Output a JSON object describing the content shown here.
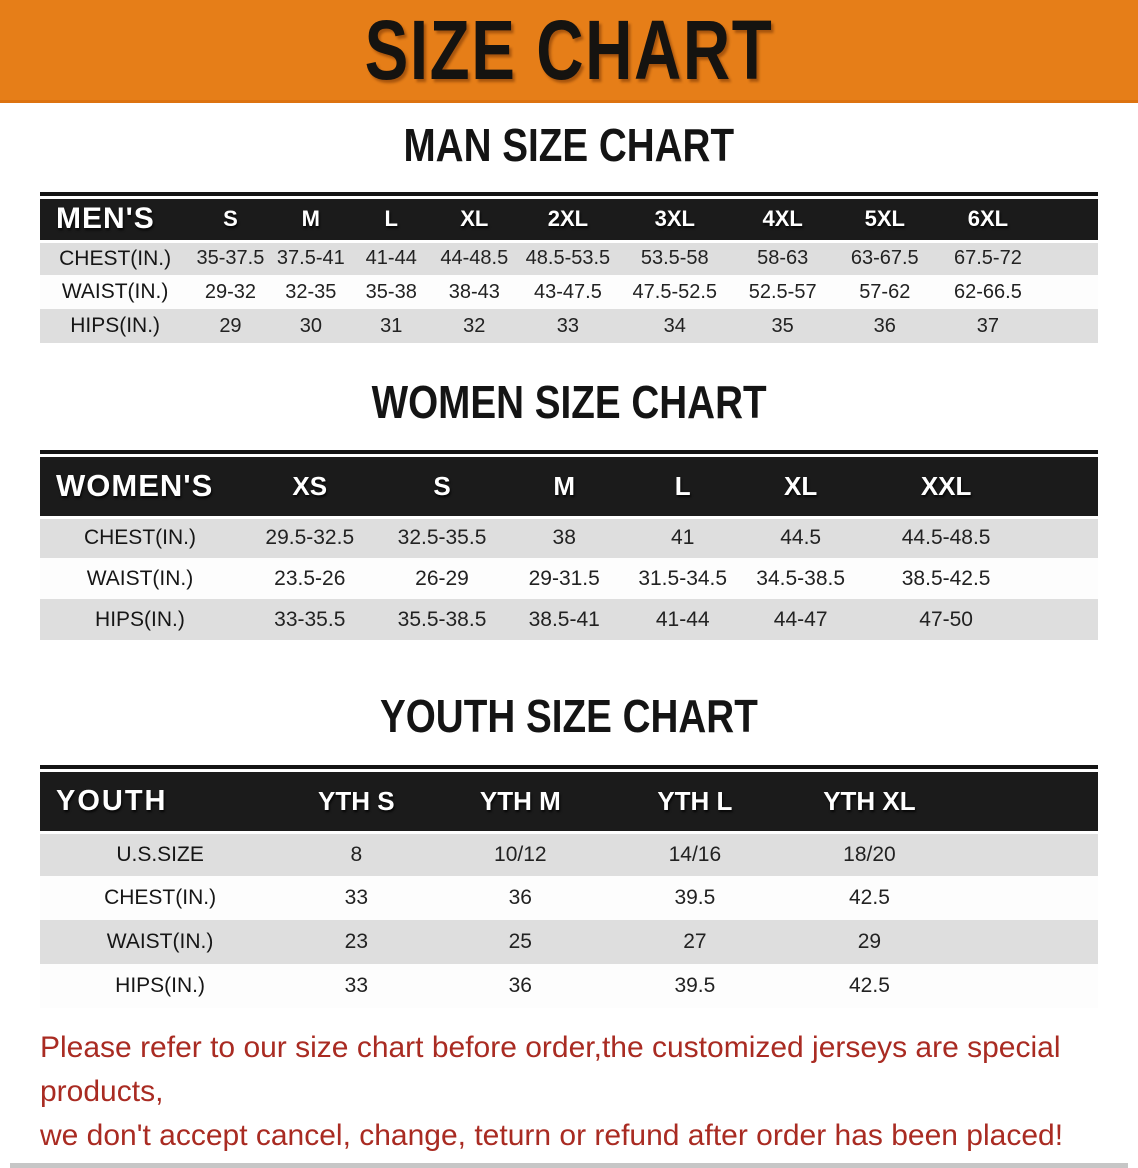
{
  "banner": {
    "title": "SIZE CHART",
    "bg_color": "#E67E18"
  },
  "colors": {
    "banner_orange": "#E67E18",
    "header_band_black": "#1B1B1B",
    "row_gray": "#DEDEDE",
    "footer_red": "#A92B22"
  },
  "sections": {
    "men": {
      "heading": "MAN SIZE CHART",
      "table": {
        "label": "MEN'S",
        "columns": [
          "S",
          "M",
          "L",
          "XL",
          "2XL",
          "3XL",
          "4XL",
          "5XL",
          "6XL"
        ],
        "rows": [
          {
            "label": "CHEST(IN.)",
            "values": [
              "35-37.5",
              "37.5-41",
              "41-44",
              "44-48.5",
              "48.5-53.5",
              "53.5-58",
              "58-63",
              "63-67.5",
              "67.5-72"
            ]
          },
          {
            "label": "WAIST(IN.)",
            "values": [
              "29-32",
              "32-35",
              "35-38",
              "38-43",
              "43-47.5",
              "47.5-52.5",
              "52.5-57",
              "57-62",
              "62-66.5"
            ]
          },
          {
            "label": "HIPS(IN.)",
            "values": [
              "29",
              "30",
              "31",
              "32",
              "33",
              "34",
              "35",
              "36",
              "37"
            ]
          }
        ]
      }
    },
    "women": {
      "heading": "WOMEN SIZE CHART",
      "table": {
        "label": "WOMEN'S",
        "columns": [
          "XS",
          "S",
          "M",
          "L",
          "XL",
          "XXL"
        ],
        "rows": [
          {
            "label": "CHEST(IN.)",
            "values": [
              "29.5-32.5",
              "32.5-35.5",
              "38",
              "41",
              "44.5",
              "44.5-48.5"
            ]
          },
          {
            "label": "WAIST(IN.)",
            "values": [
              "23.5-26",
              "26-29",
              "29-31.5",
              "31.5-34.5",
              "34.5-38.5",
              "38.5-42.5"
            ]
          },
          {
            "label": "HIPS(IN.)",
            "values": [
              "33-35.5",
              "35.5-38.5",
              "38.5-41",
              "41-44",
              "44-47",
              "47-50"
            ]
          }
        ]
      }
    },
    "youth": {
      "heading": "YOUTH SIZE CHART",
      "table": {
        "label": "YOUTH",
        "columns": [
          "YTH S",
          "YTH M",
          "YTH L",
          "YTH XL"
        ],
        "rows": [
          {
            "label": "U.S.SIZE",
            "values": [
              "8",
              "10/12",
              "14/16",
              "18/20"
            ]
          },
          {
            "label": "CHEST(IN.)",
            "values": [
              "33",
              "36",
              "39.5",
              "42.5"
            ]
          },
          {
            "label": "WAIST(IN.)",
            "values": [
              "23",
              "25",
              "27",
              "29"
            ]
          },
          {
            "label": "HIPS(IN.)",
            "values": [
              "33",
              "36",
              "39.5",
              "42.5"
            ]
          }
        ]
      }
    }
  },
  "footer": {
    "line1": "Please refer to our size chart before order,the customized jerseys are special products,",
    "line2": "we don't accept cancel, change, teturn or refund after order has been placed!"
  }
}
